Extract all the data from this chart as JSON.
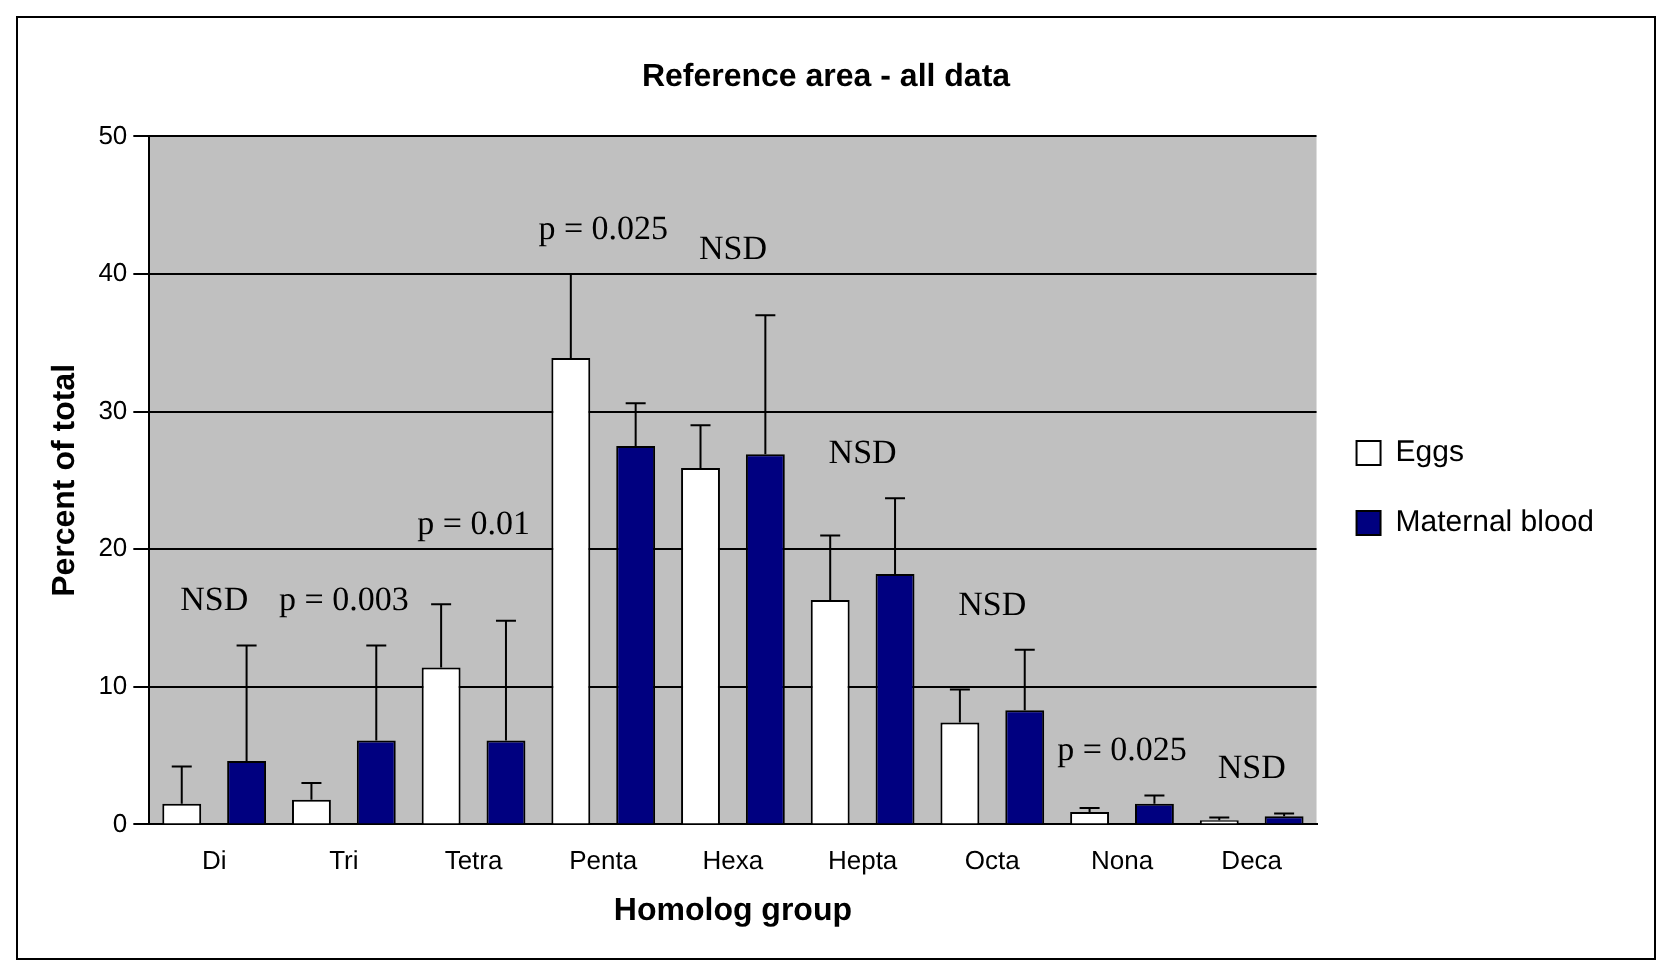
{
  "chart_data": {
    "type": "bar",
    "title": "Reference area - all data",
    "xlabel": "Homolog group",
    "ylabel": "Percent of total",
    "categories": [
      "Di",
      "Tri",
      "Tetra",
      "Penta",
      "Hexa",
      "Hepta",
      "Octa",
      "Nona",
      "Deca"
    ],
    "series": [
      {
        "name": "Eggs",
        "color": "#ffffff",
        "values": [
          1.5,
          1.8,
          11.4,
          33.9,
          25.9,
          16.3,
          7.4,
          0.9,
          0.3
        ],
        "errors": [
          [
            1.5,
            4.2
          ],
          [
            1.8,
            3
          ],
          [
            11.4,
            16
          ],
          [
            33.9,
            40
          ],
          [
            25.9,
            29
          ],
          [
            16.3,
            21
          ],
          [
            7.4,
            9.8
          ],
          [
            0.9,
            1.2
          ],
          [
            0.3,
            0.5
          ]
        ]
      },
      {
        "name": "Maternal blood",
        "color": "#000080",
        "values": [
          4.6,
          6.1,
          6.1,
          27.5,
          26.9,
          18.2,
          8.3,
          1.5,
          0.6
        ],
        "errors": [
          [
            4.6,
            13
          ],
          [
            6.1,
            13
          ],
          [
            6.1,
            14.8
          ],
          [
            27.5,
            30.6
          ],
          [
            26.9,
            37
          ],
          [
            18.2,
            23.7
          ],
          [
            8.3,
            12.7
          ],
          [
            1.5,
            2.1
          ],
          [
            0.6,
            0.8
          ]
        ]
      }
    ],
    "annotations": [
      "NSD",
      "p = 0.003",
      "p = 0.01",
      "p = 0.025",
      "NSD",
      "NSD",
      "NSD",
      "p = 0.025",
      "NSD"
    ],
    "ylim": [
      0,
      50
    ],
    "yticks": [
      0,
      10,
      20,
      30,
      40,
      50
    ],
    "grid": "y",
    "legend": "right"
  }
}
